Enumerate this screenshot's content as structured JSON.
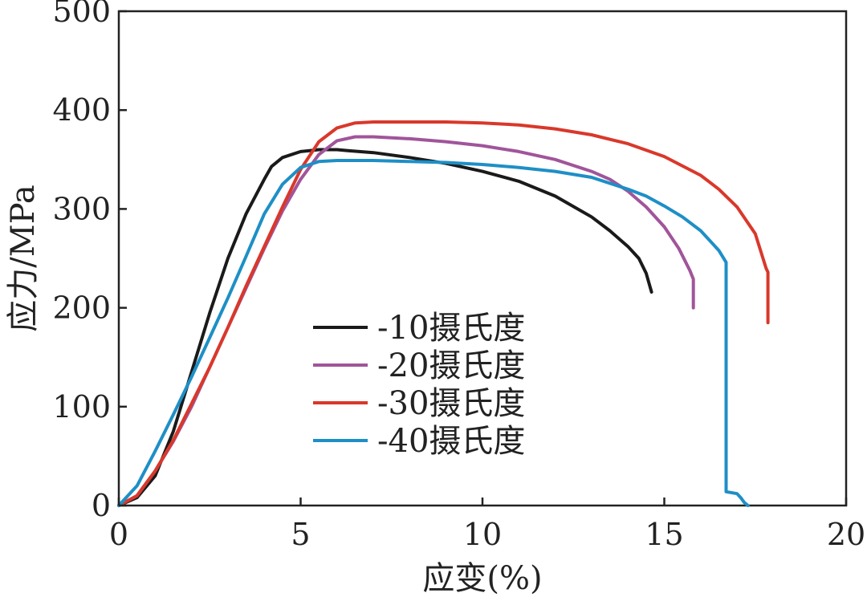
{
  "chart_data": {
    "type": "line",
    "xlabel": "应变(%)",
    "ylabel": "应力/MPa",
    "xlim": [
      0,
      20
    ],
    "ylim": [
      0,
      500
    ],
    "x_ticks": [
      0,
      5,
      10,
      15,
      20
    ],
    "y_ticks": [
      0,
      100,
      200,
      300,
      400,
      500
    ],
    "grid": false,
    "legend_position": "center-left",
    "series": [
      {
        "name": "-10摄氏度",
        "color": "#1a1a1a",
        "points": [
          [
            0,
            0
          ],
          [
            0.5,
            8
          ],
          [
            1,
            30
          ],
          [
            1.5,
            75
          ],
          [
            2,
            135
          ],
          [
            2.5,
            195
          ],
          [
            3,
            250
          ],
          [
            3.5,
            295
          ],
          [
            4,
            330
          ],
          [
            4.2,
            343
          ],
          [
            4.5,
            352
          ],
          [
            5,
            358
          ],
          [
            5.5,
            360
          ],
          [
            6,
            360
          ],
          [
            6.3,
            359
          ],
          [
            7,
            357
          ],
          [
            8,
            352
          ],
          [
            9,
            346
          ],
          [
            10,
            338
          ],
          [
            11,
            328
          ],
          [
            12,
            313
          ],
          [
            13,
            292
          ],
          [
            13.5,
            278
          ],
          [
            14,
            262
          ],
          [
            14.3,
            250
          ],
          [
            14.5,
            235
          ],
          [
            14.65,
            216
          ]
        ]
      },
      {
        "name": "-20摄氏度",
        "color": "#a0559a",
        "points": [
          [
            0,
            0
          ],
          [
            0.5,
            10
          ],
          [
            1,
            35
          ],
          [
            1.5,
            65
          ],
          [
            2,
            100
          ],
          [
            2.5,
            140
          ],
          [
            3,
            180
          ],
          [
            3.5,
            220
          ],
          [
            4,
            260
          ],
          [
            4.5,
            298
          ],
          [
            5,
            330
          ],
          [
            5.5,
            355
          ],
          [
            6,
            369
          ],
          [
            6.5,
            373
          ],
          [
            7,
            373
          ],
          [
            8,
            371
          ],
          [
            9,
            368
          ],
          [
            10,
            364
          ],
          [
            11,
            358
          ],
          [
            12,
            350
          ],
          [
            13,
            338
          ],
          [
            13.5,
            330
          ],
          [
            14,
            318
          ],
          [
            14.5,
            302
          ],
          [
            15,
            282
          ],
          [
            15.4,
            260
          ],
          [
            15.7,
            238
          ],
          [
            15.8,
            229
          ],
          [
            15.8,
            200
          ]
        ]
      },
      {
        "name": "-30摄氏度",
        "color": "#d9382b",
        "points": [
          [
            0,
            0
          ],
          [
            0.5,
            10
          ],
          [
            1,
            35
          ],
          [
            1.5,
            66
          ],
          [
            2,
            103
          ],
          [
            2.5,
            140
          ],
          [
            3,
            180
          ],
          [
            3.5,
            222
          ],
          [
            4,
            262
          ],
          [
            4.5,
            302
          ],
          [
            5,
            340
          ],
          [
            5.5,
            368
          ],
          [
            6,
            382
          ],
          [
            6.5,
            387
          ],
          [
            7,
            388
          ],
          [
            8,
            388
          ],
          [
            9,
            388
          ],
          [
            10,
            387
          ],
          [
            11,
            385
          ],
          [
            12,
            381
          ],
          [
            13,
            375
          ],
          [
            14,
            366
          ],
          [
            15,
            353
          ],
          [
            16,
            334
          ],
          [
            16.5,
            320
          ],
          [
            17,
            302
          ],
          [
            17.5,
            275
          ],
          [
            17.8,
            240
          ],
          [
            17.85,
            236
          ],
          [
            17.85,
            185
          ]
        ]
      },
      {
        "name": "-40摄氏度",
        "color": "#1e8fc6",
        "points": [
          [
            0,
            0
          ],
          [
            0.5,
            20
          ],
          [
            1,
            55
          ],
          [
            1.5,
            92
          ],
          [
            2,
            130
          ],
          [
            2.5,
            170
          ],
          [
            3,
            210
          ],
          [
            3.5,
            252
          ],
          [
            4,
            295
          ],
          [
            4.5,
            325
          ],
          [
            5,
            342
          ],
          [
            5.5,
            348
          ],
          [
            6,
            349
          ],
          [
            7,
            349
          ],
          [
            8,
            348
          ],
          [
            9,
            347
          ],
          [
            10,
            345
          ],
          [
            11,
            342
          ],
          [
            12,
            338
          ],
          [
            13,
            332
          ],
          [
            14,
            320
          ],
          [
            14.5,
            313
          ],
          [
            15,
            303
          ],
          [
            15.5,
            292
          ],
          [
            16,
            278
          ],
          [
            16.5,
            258
          ],
          [
            16.7,
            246
          ],
          [
            16.7,
            14
          ],
          [
            17,
            12
          ],
          [
            17.1,
            8
          ],
          [
            17.2,
            3
          ],
          [
            17.3,
            0
          ]
        ]
      }
    ]
  }
}
